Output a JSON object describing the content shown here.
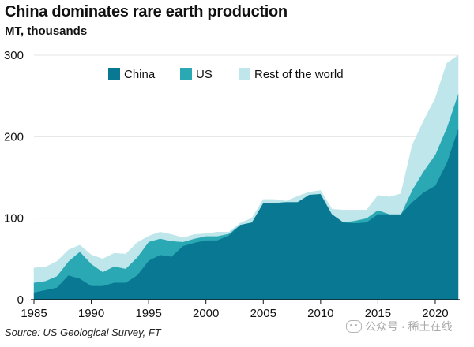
{
  "header": {
    "title": "China dominates rare earth production",
    "subtitle": "MT, thousands"
  },
  "footer": {
    "source": "Source: US Geological Survey, FT",
    "watermark": "公众号 · 稀土在线"
  },
  "colors": {
    "china": "#087893",
    "us": "#2aa8b3",
    "rest": "#bfe6ea",
    "grid": "#e4e4e4",
    "axis": "#111111"
  },
  "chart_data": {
    "type": "area",
    "stacked": true,
    "title": "China dominates rare earth production",
    "ylabel": "MT, thousands",
    "xlabel": "",
    "xlim": [
      1985,
      2022
    ],
    "ylim": [
      0,
      300
    ],
    "yticks": [
      0,
      100,
      200,
      300
    ],
    "xticks": [
      1985,
      1990,
      1995,
      2000,
      2005,
      2010,
      2015,
      2020
    ],
    "grid": true,
    "legend_position": "top",
    "x": [
      1985,
      1986,
      1987,
      1988,
      1989,
      1990,
      1991,
      1992,
      1993,
      1994,
      1995,
      1996,
      1997,
      1998,
      1999,
      2000,
      2001,
      2002,
      2003,
      2004,
      2005,
      2006,
      2007,
      2008,
      2009,
      2010,
      2011,
      2012,
      2013,
      2014,
      2015,
      2016,
      2017,
      2018,
      2019,
      2020,
      2021,
      2022
    ],
    "series": [
      {
        "name": "China",
        "values": [
          9,
          12,
          15,
          30,
          26,
          17,
          17,
          21,
          21,
          30,
          48,
          55,
          53,
          66,
          70,
          73,
          73,
          79,
          92,
          95,
          119,
          119,
          120,
          120,
          129,
          130,
          105,
          95,
          94,
          95,
          105,
          105,
          105,
          120,
          132,
          140,
          168,
          210
        ]
      },
      {
        "name": "US",
        "values": [
          12,
          11,
          14,
          17,
          33,
          27,
          17,
          20,
          17,
          22,
          23,
          20,
          19,
          5,
          5,
          5,
          5,
          2,
          0,
          0,
          0,
          0,
          0,
          0,
          0,
          0,
          0,
          0,
          3,
          5,
          5,
          0,
          0,
          15,
          26,
          38,
          43,
          43
        ]
      },
      {
        "name": "Rest of the world",
        "values": [
          18,
          17,
          18,
          14,
          8,
          11,
          16,
          16,
          18,
          18,
          7,
          8,
          8,
          5,
          5,
          3,
          5,
          2,
          2,
          5,
          4,
          4,
          1,
          7,
          3,
          4,
          6,
          15,
          13,
          10,
          18,
          21,
          25,
          55,
          62,
          69,
          79,
          47
        ]
      }
    ]
  }
}
